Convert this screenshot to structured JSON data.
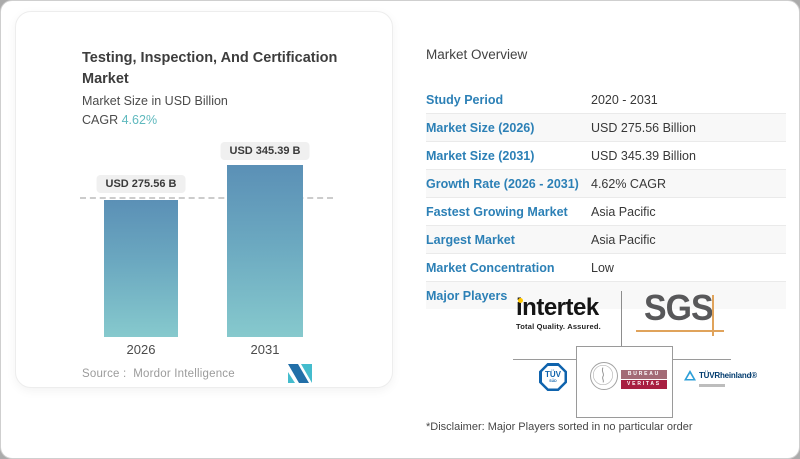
{
  "card": {
    "title": "Testing, Inspection, And Certification Market",
    "title_lines": [
      "Testing, Inspection, And Certification",
      "Market"
    ],
    "subtitle": "Market Size in USD Billion",
    "cagr_label": "CAGR",
    "cagr_value": "4.62%",
    "source_label": "Source :",
    "source_value": "Mordor Intelligence"
  },
  "chart_data": {
    "type": "bar",
    "categories": [
      "2026",
      "2031"
    ],
    "values": [
      275.56,
      345.39
    ],
    "unit": "USD Billion",
    "bar_labels": [
      "USD 275.56 B",
      "USD 345.39 B"
    ],
    "title": "Testing, Inspection, And Certification Market",
    "xlabel": "",
    "ylabel": "Market Size in USD Billion",
    "ylim": [
      0,
      345.39
    ],
    "grid": "single dashed reference line at first bar top",
    "legend": "none",
    "colors": {
      "bar_gradient_top": "#5b90b6",
      "bar_gradient_bottom": "#86c9cd"
    }
  },
  "overview": {
    "title": "Market Overview",
    "rows": [
      {
        "label": "Study Period",
        "value": "2020 - 2031"
      },
      {
        "label": "Market Size (2026)",
        "value": "USD 275.56 Billion"
      },
      {
        "label": "Market Size (2031)",
        "value": "USD 345.39 Billion"
      },
      {
        "label": "Growth Rate (2026 - 2031)",
        "value": "4.62% CAGR"
      },
      {
        "label": "Fastest Growing Market",
        "value": "Asia Pacific"
      },
      {
        "label": "Largest Market",
        "value": "Asia Pacific"
      },
      {
        "label": "Market Concentration",
        "value": "Low"
      },
      {
        "label": "Major Players",
        "value": ""
      }
    ],
    "disclaimer": "*Disclaimer: Major Players sorted in no particular order"
  },
  "players": {
    "intertek": {
      "name": "intertek",
      "tagline": "Total Quality. Assured."
    },
    "sgs": {
      "name": "SGS"
    },
    "tuv_sud": {
      "name": "TÜV",
      "sub": "SÜD"
    },
    "bureau_veritas": {
      "line1": "BUREAU",
      "line2": "VERITAS"
    },
    "tuv_rheinland": {
      "name": "TÜVRheinland®"
    }
  },
  "colors": {
    "label_blue": "#2c80b6",
    "cagr_teal": "#5fb9be",
    "bar_top": "#5b90b6",
    "bar_bottom": "#86c9cd",
    "sgs_orange": "#e0a35b",
    "bv_red": "#a81f41",
    "tuv_blue": "#0f63ad",
    "intertek_yellow": "#ffc600"
  }
}
